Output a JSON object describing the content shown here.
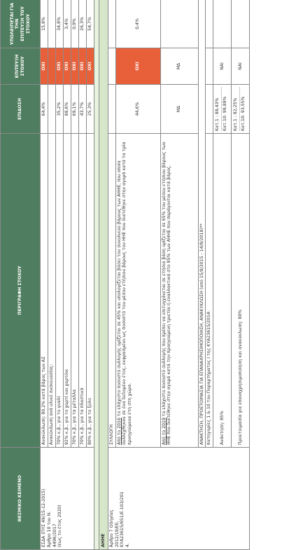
{
  "headers": {
    "col1": "ΘΕΣΜΙΚΟ ΚΕΙΜΕΝΟ",
    "col2": "ΠΕΡΙΓΡΑΦΗ ΣΤΟΧΟΥ",
    "col3": "ΕΠΙΔΟΣΗ",
    "col4_line1": "ΕΠΙΤΕΥΞΗ",
    "col4_line2": "ΣΤΟΧΟΥ",
    "col5_line1": "ΥΠΟΛΕΙΠΕΤΑΙ ΓΙΑ ΤΗΝ",
    "col5_line2": "ΕΠΙΤΕΥΞΗ ΤΟΥ ΣΤΟΧΟΥ"
  },
  "esda": {
    "law_line1": "ΕΣΔΑ (ΠΥΣ 49/15-12-2015)",
    "law_line2": "Άρθρο 10 του Ν.",
    "law_line3": "4496/2017",
    "law_line4": "(έως το έτος 2020)",
    "rows": [
      {
        "desc": "Ανακύκλωση: 80,2% κατά βάρος των ΑΣ",
        "perf": "64,4%",
        "goal": "ΟΧΙ",
        "remain": "15,8%"
      },
      {
        "desc": "Ανακύκλωση ανά υλικό συσκευασίας:",
        "perf": "",
        "goal": "",
        "remain": ""
      },
      {
        "desc": "70% κ.β., για το γυαλί",
        "perf": "35,2%",
        "goal": "ΟΧΙ",
        "remain": "34,8%"
      },
      {
        "desc": "92% κ.β., για το χαρτί και χαρτόνι",
        "perf": "88,6%",
        "goal": "ΟΧΙ",
        "remain": "3,4%"
      },
      {
        "desc": "70% κ.β., για τα μέταλλα",
        "perf": "69,1%",
        "goal": "ΟΧΙ",
        "remain": "0,9%"
      },
      {
        "desc": "70% κ.β., για τα πλαστικά",
        "perf": "43,7%",
        "goal": "ΟΧΙ",
        "remain": "26,3%"
      },
      {
        "desc": "80% κ.β., για το ξύλο",
        "perf": "25,3%",
        "goal": "ΟΧΙ",
        "remain": "54,7%"
      }
    ]
  },
  "ahhe": {
    "section": "ΑΗΗΕ",
    "law_line1": "Άρθρο 7 Οδηγίας",
    "law_line2": "2012/19/ΕΕ,",
    "law_line3": "ΚΥΑ23615/651/Ε.103/201",
    "law_line4": "4.",
    "collection_label": "ΣΥΛΛΟΓΗ",
    "target2016_u": "Από το 2016",
    "target2016_rest": " το ελάχιστο ποσοστό συλλογής ορίζεται σε 45% και υπολογίζεται βάσει του συνολικού βάρους των ΑΗΗΕ, που οποία συλλέχθηκαν σε ένα δεδομένο έτος, εκφρασμένο ως ποσοστό του μέσου ετήσιου βάρους του ΗΗΕ που διατέθηκε στην αγορά κατά τα τρία προηγούμενα έτη στη χώρα.",
    "target2016_perf": "44,6%",
    "target2016_goal": "ΟΧΙ",
    "target2016_remain": "0,4%",
    "target2019_u": "Από το 2019",
    "target2019_rest": " το ελάχιστο ποσοστό συλλογής που πρέπει να επιτυγχάνεται σε ετήσια βάση ορίζεται σε 65% του μέσου ετήσιου βάρους των ΗΗΕ που διατέθηκε στην αγορά κατά την προηγούμενη τριετία ή εναλλακτικά στο 85% των ΑΗΗΕ που παράγονται κατά βάρος.",
    "target2019_perf": "ΜΔ",
    "target2019_goal": "ΜΔ",
    "recovery_header": "ΑΝΑΚΤΗΣΗ, ΠΡΟΕΤΟΙΜΑΣΙΑ ΓΙΑ ΕΠΑΝΑΧΡΗΣΙΜΟΠΟΙΗΣΗ, ΑΝΑΚΥΚΛΩΣΗ (από 15/8/2015 - 14/8/2018)**",
    "categories_label": "Κατηγορίες 1 & 10 του Παραρτήματος I της ΚΥΑ23615/2014:",
    "recovery_label": "Ανάκτηση: 85%",
    "recovery_cat1": "Κατ.1 : 88,43%",
    "recovery_cat10": "Κατ.10: 99,89%",
    "recovery_goal": "ΝΑΙ",
    "reuse_label": "Προετοιμασία για επαναχρησιμοποίηση και ανακύκλωση: 80%",
    "reuse_cat1": "Κατ.1 : 82,25%",
    "reuse_cat10": "Κατ.10: 93,55%",
    "reuse_goal": "ΝΑΙ"
  }
}
